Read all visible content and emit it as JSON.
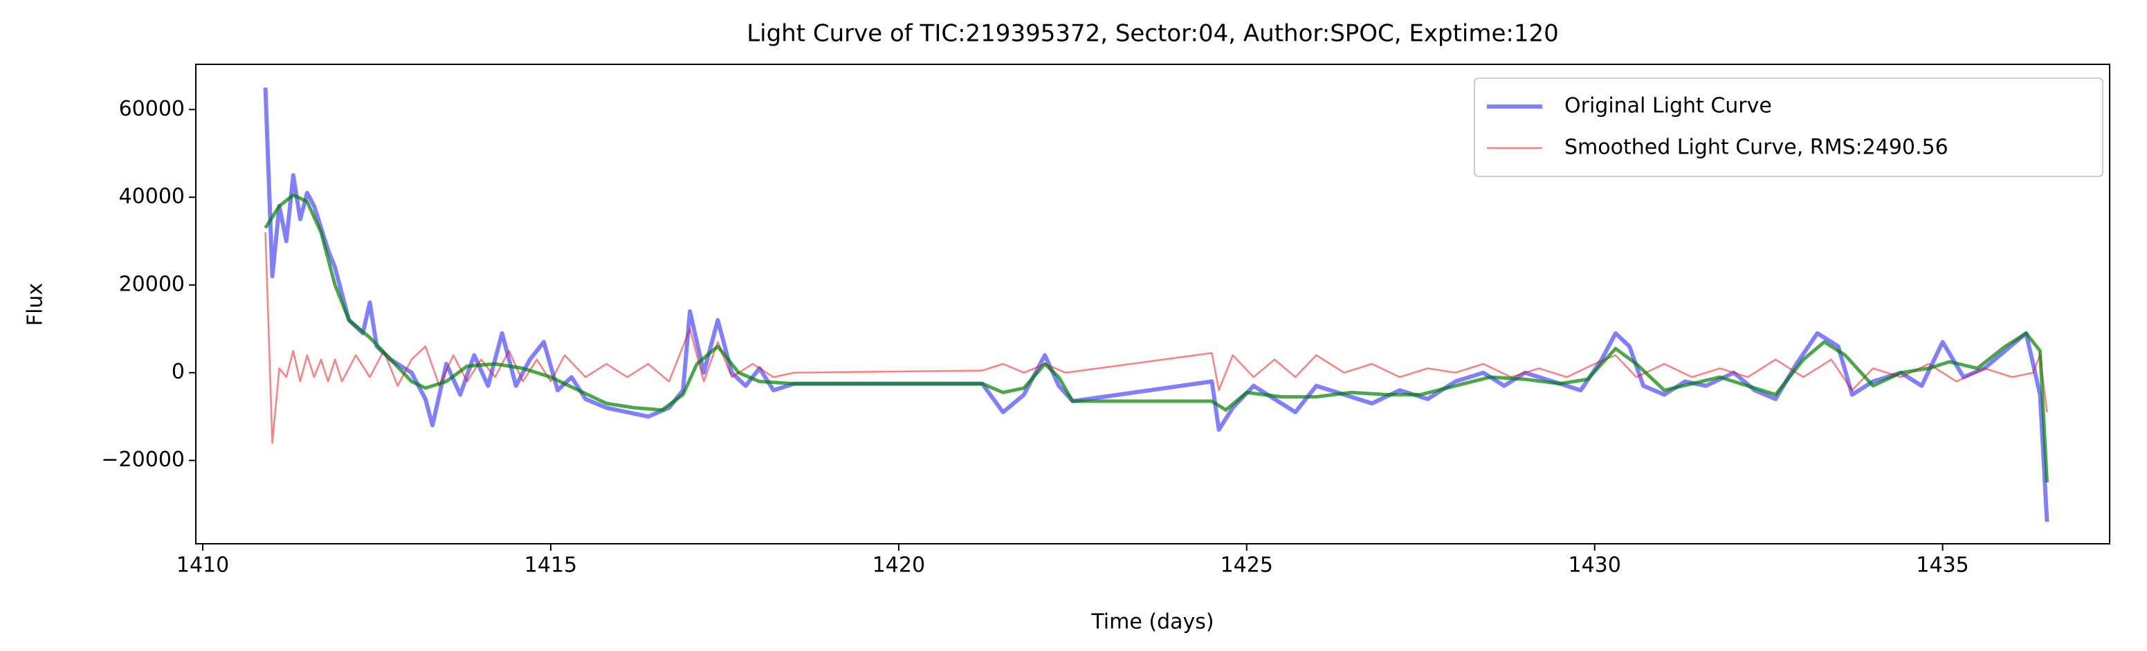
{
  "chart_data": {
    "type": "line",
    "title": "Light Curve of TIC:219395372, Sector:04, Author:SPOC, Exptime:120",
    "x_label": "Time (days)",
    "y_label": "Flux",
    "xlim": [
      1409.9,
      1437.4
    ],
    "ylim": [
      -39000,
      70300
    ],
    "xticks": [
      1410,
      1415,
      1420,
      1425,
      1430,
      1435
    ],
    "yticks": [
      {
        "value": -20000,
        "label": "−20000"
      },
      0,
      20000,
      40000,
      60000
    ],
    "grid": false,
    "legend": "upper right",
    "series": [
      {
        "name": "Original Light Curve",
        "color": "#0000ff",
        "x": [
          1410.9,
          1411.0,
          1411.1,
          1411.2,
          1411.3,
          1411.4,
          1411.5,
          1411.6,
          1411.8,
          1411.9,
          1412.0,
          1412.1,
          1412.3,
          1412.4,
          1412.5,
          1412.7,
          1413.0,
          1413.2,
          1413.3,
          1413.5,
          1413.7,
          1413.9,
          1414.1,
          1414.3,
          1414.5,
          1414.7,
          1414.9,
          1415.1,
          1415.3,
          1415.5,
          1415.8,
          1416.1,
          1416.4,
          1416.7,
          1416.9,
          1417.0,
          1417.2,
          1417.4,
          1417.6,
          1417.8,
          1418.0,
          1418.2,
          1418.5,
          1421.2,
          1421.5,
          1421.8,
          1422.1,
          1422.3,
          1422.5,
          1424.5,
          1424.6,
          1424.8,
          1425.1,
          1425.4,
          1425.7,
          1426.0,
          1426.4,
          1426.8,
          1427.2,
          1427.6,
          1428.0,
          1428.4,
          1428.7,
          1429.0,
          1429.4,
          1429.8,
          1430.1,
          1430.3,
          1430.5,
          1430.7,
          1431.0,
          1431.3,
          1431.6,
          1432.0,
          1432.3,
          1432.6,
          1432.9,
          1433.2,
          1433.5,
          1433.7,
          1434.0,
          1434.4,
          1434.7,
          1435.0,
          1435.3,
          1435.6,
          1435.9,
          1436.2,
          1436.4,
          1436.5
        ],
        "values": [
          65000,
          22000,
          38000,
          30000,
          45000,
          35000,
          41000,
          38000,
          28000,
          24000,
          18000,
          12000,
          9000,
          16000,
          6000,
          3000,
          0,
          -6000,
          -12000,
          2000,
          -5000,
          4000,
          -3000,
          9000,
          -3000,
          3000,
          7000,
          -4000,
          -1000,
          -6000,
          -8000,
          -9000,
          -10000,
          -8000,
          -4000,
          14000,
          0,
          12000,
          0,
          -3000,
          1000,
          -4000,
          -2500,
          -2500,
          -9000,
          -5000,
          4000,
          -3000,
          -6500,
          -2000,
          -13000,
          -8000,
          -3000,
          -6000,
          -9000,
          -3000,
          -5000,
          -7000,
          -4000,
          -6000,
          -2000,
          0,
          -3000,
          0,
          -2000,
          -4000,
          3000,
          9000,
          6000,
          -3000,
          -5000,
          -2000,
          -3000,
          0,
          -4000,
          -6000,
          2000,
          9000,
          6000,
          -5000,
          -2000,
          0,
          -3000,
          7000,
          -1000,
          1000,
          5000,
          9000,
          -5000,
          -34000
        ]
      },
      {
        "name": "Smoothed Light Curve, RMS:2490.56",
        "color": "#ff0000",
        "x": [
          1410.9,
          1411.0,
          1411.1,
          1411.2,
          1411.3,
          1411.4,
          1411.5,
          1411.6,
          1411.7,
          1411.8,
          1411.9,
          1412.0,
          1412.2,
          1412.4,
          1412.6,
          1412.8,
          1413.0,
          1413.2,
          1413.4,
          1413.6,
          1413.8,
          1414.0,
          1414.2,
          1414.4,
          1414.6,
          1414.8,
          1415.0,
          1415.2,
          1415.5,
          1415.8,
          1416.1,
          1416.4,
          1416.7,
          1417.0,
          1417.2,
          1417.4,
          1417.6,
          1417.9,
          1418.2,
          1418.5,
          1421.2,
          1421.5,
          1421.8,
          1422.1,
          1422.4,
          1424.5,
          1424.6,
          1424.8,
          1425.1,
          1425.4,
          1425.7,
          1426.0,
          1426.4,
          1426.8,
          1427.2,
          1427.6,
          1428.0,
          1428.4,
          1428.8,
          1429.2,
          1429.6,
          1430.0,
          1430.3,
          1430.6,
          1431.0,
          1431.4,
          1431.8,
          1432.2,
          1432.6,
          1433.0,
          1433.4,
          1433.7,
          1434.0,
          1434.4,
          1434.8,
          1435.2,
          1435.6,
          1436.0,
          1436.3,
          1436.4,
          1436.5
        ],
        "values": [
          32000,
          -16000,
          1000,
          -1000,
          5000,
          -2000,
          4000,
          -1000,
          3000,
          -2000,
          3000,
          -2000,
          4000,
          -1000,
          5000,
          -3000,
          3000,
          6000,
          -3000,
          4000,
          -2000,
          3000,
          -1000,
          5000,
          -2000,
          3000,
          -2000,
          4000,
          -1000,
          2000,
          -1000,
          2000,
          -2000,
          10000,
          -2000,
          7000,
          -1000,
          2000,
          -1000,
          0,
          500,
          2000,
          0,
          2000,
          0,
          4500,
          -4000,
          4000,
          -1000,
          3000,
          -1000,
          4000,
          0,
          2000,
          -1000,
          1000,
          0,
          2000,
          -1000,
          1000,
          -1000,
          2000,
          4000,
          -1000,
          2000,
          -1000,
          1000,
          -1000,
          3000,
          -1000,
          3000,
          -4000,
          1000,
          -1000,
          2000,
          -2000,
          1000,
          -1000,
          0,
          4000,
          -9000
        ]
      },
      {
        "color": "#008000",
        "x": [
          1410.9,
          1411.1,
          1411.3,
          1411.5,
          1411.7,
          1411.9,
          1412.1,
          1412.4,
          1412.7,
          1413.0,
          1413.2,
          1413.5,
          1413.8,
          1414.2,
          1414.6,
          1415.0,
          1415.4,
          1415.8,
          1416.2,
          1416.6,
          1416.9,
          1417.1,
          1417.4,
          1417.7,
          1418.0,
          1418.5,
          1421.2,
          1421.5,
          1421.8,
          1422.1,
          1422.3,
          1422.5,
          1424.5,
          1424.7,
          1425.0,
          1425.5,
          1426.0,
          1426.5,
          1427.0,
          1427.5,
          1428.0,
          1428.5,
          1429.0,
          1429.5,
          1429.9,
          1430.3,
          1430.6,
          1431.0,
          1431.4,
          1431.8,
          1432.2,
          1432.6,
          1433.0,
          1433.3,
          1433.6,
          1434.0,
          1434.4,
          1434.8,
          1435.1,
          1435.5,
          1435.9,
          1436.2,
          1436.4,
          1436.5
        ],
        "values": [
          33000,
          38000,
          40500,
          39000,
          32000,
          20000,
          12000,
          8000,
          3000,
          -2000,
          -3500,
          -2000,
          1500,
          2000,
          1000,
          -1000,
          -4000,
          -7000,
          -8000,
          -8500,
          -5000,
          2000,
          6000,
          0,
          -2000,
          -2500,
          -2500,
          -4500,
          -3500,
          2000,
          -1000,
          -6500,
          -6500,
          -8500,
          -4500,
          -5500,
          -5500,
          -4500,
          -5000,
          -5000,
          -3000,
          -1000,
          -1500,
          -2500,
          -1500,
          5500,
          2000,
          -4000,
          -2500,
          -1000,
          -3000,
          -5000,
          3000,
          7000,
          4000,
          -3000,
          0,
          1000,
          2500,
          1000,
          6000,
          9000,
          5000,
          -25000
        ]
      }
    ]
  }
}
